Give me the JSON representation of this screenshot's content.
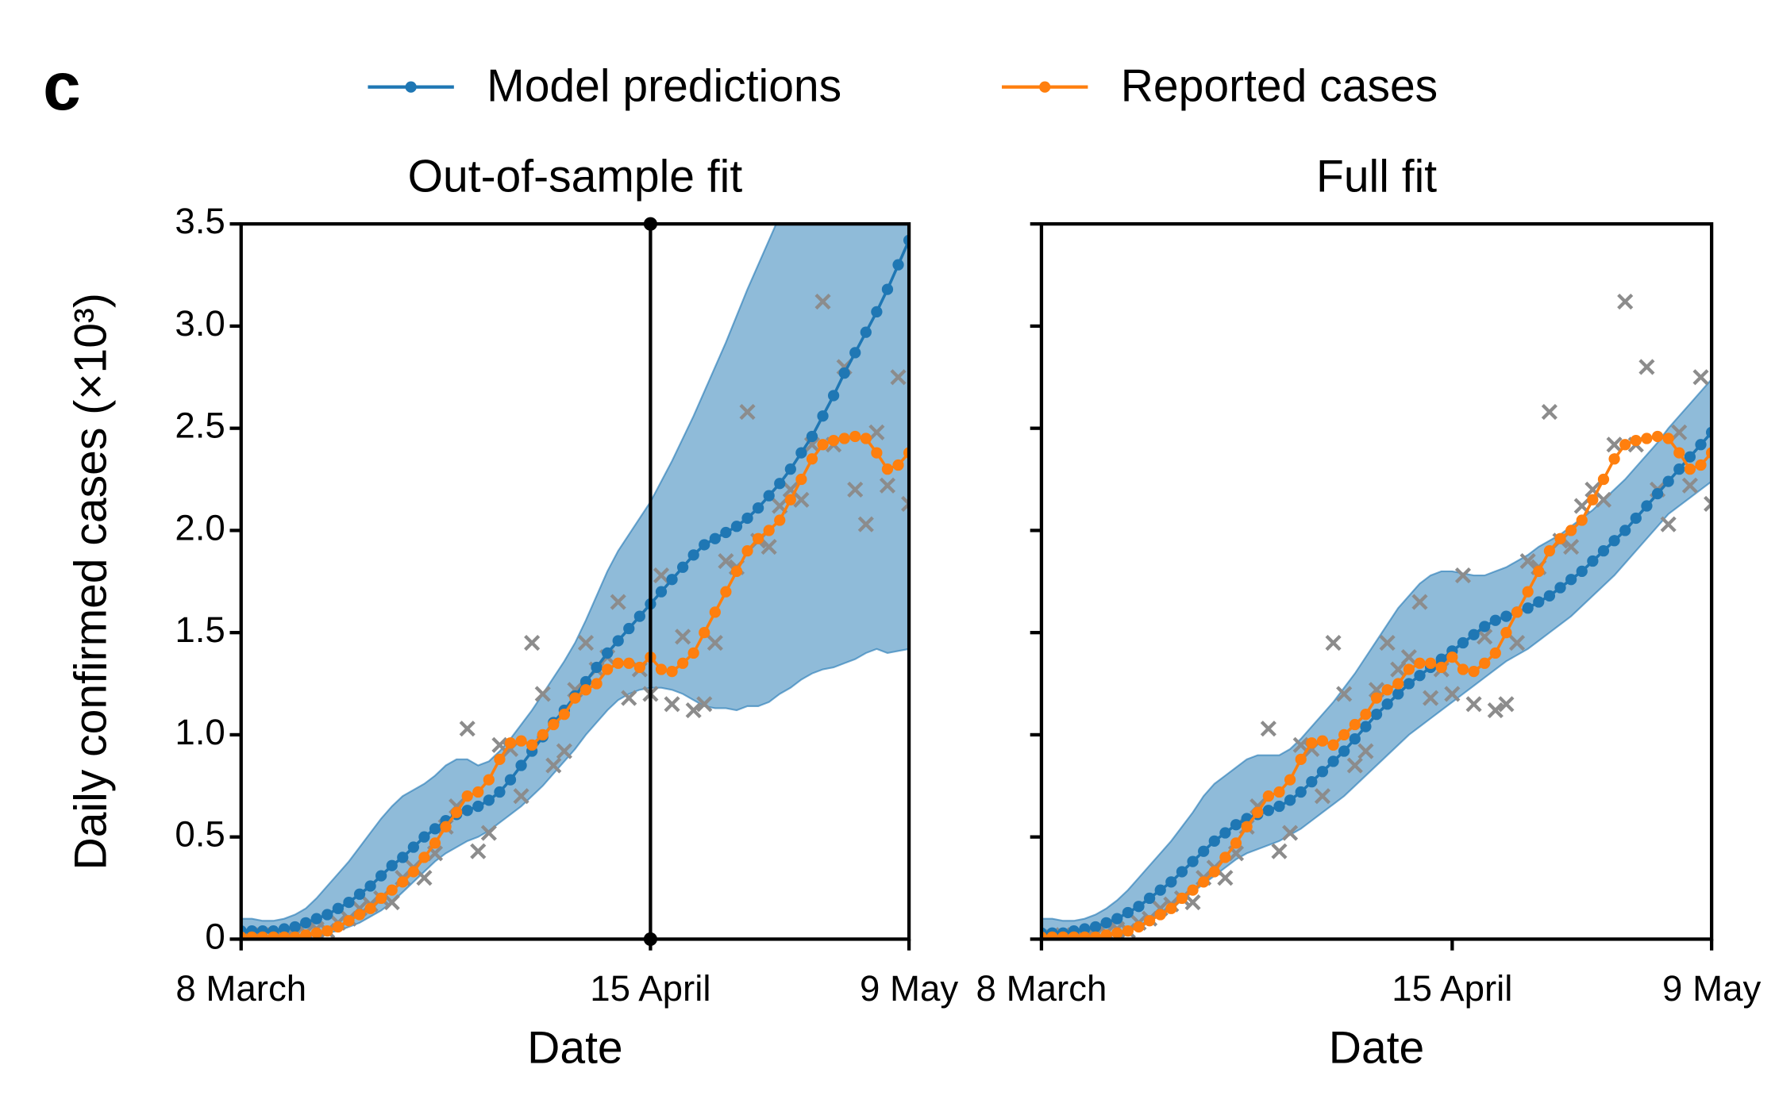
{
  "label": "c",
  "chart_data": [
    {
      "type": "line",
      "title": "Out-of-sample fit",
      "xlabel": "Date",
      "ylabel": "Daily confirmed cases (×10³)",
      "legend": "top",
      "x": [
        0,
        1,
        2,
        3,
        4,
        5,
        6,
        7,
        8,
        9,
        10,
        11,
        12,
        13,
        14,
        15,
        16,
        17,
        18,
        19,
        20,
        21,
        22,
        23,
        24,
        25,
        26,
        27,
        28,
        29,
        30,
        31,
        32,
        33,
        34,
        35,
        36,
        37,
        38,
        39,
        40,
        41,
        42,
        43,
        44,
        45,
        46,
        47,
        48,
        49,
        50,
        51,
        52,
        53,
        54,
        55,
        56,
        57,
        58,
        59,
        60,
        61,
        62
      ],
      "xlim": [
        0,
        62
      ],
      "xticks": [
        {
          "value": 0,
          "label": "8 March"
        },
        {
          "value": 38,
          "label": "15 April"
        },
        {
          "value": 62,
          "label": "9 May"
        }
      ],
      "ylim": [
        0,
        3.5
      ],
      "yticks": [
        0,
        0.5,
        {
          "value": 1,
          "label": "1.0"
        },
        1.5,
        {
          "value": 2,
          "label": "2.0"
        },
        2.5,
        {
          "value": 3,
          "label": "3.0"
        },
        3.5
      ],
      "vline": 38,
      "band": {
        "color": "#1f77b4",
        "upper": [
          0.1,
          0.1,
          0.09,
          0.09,
          0.1,
          0.12,
          0.15,
          0.2,
          0.26,
          0.32,
          0.38,
          0.45,
          0.52,
          0.59,
          0.65,
          0.7,
          0.73,
          0.76,
          0.8,
          0.85,
          0.88,
          0.88,
          0.85,
          0.87,
          0.92,
          0.98,
          1.05,
          1.12,
          1.2,
          1.28,
          1.36,
          1.45,
          1.56,
          1.68,
          1.8,
          1.9,
          1.98,
          2.06,
          2.14,
          2.24,
          2.34,
          2.45,
          2.56,
          2.68,
          2.8,
          2.92,
          3.05,
          3.18,
          3.3,
          3.42,
          3.54,
          3.64,
          3.74,
          3.84,
          3.94,
          4.04,
          4.14,
          4.24,
          4.34,
          4.44,
          4.54,
          4.64,
          4.74
        ],
        "lower": [
          0,
          0,
          0,
          0,
          0,
          0,
          0.01,
          0.02,
          0.03,
          0.04,
          0.06,
          0.08,
          0.11,
          0.14,
          0.18,
          0.23,
          0.28,
          0.33,
          0.38,
          0.42,
          0.45,
          0.48,
          0.5,
          0.53,
          0.57,
          0.61,
          0.65,
          0.7,
          0.75,
          0.81,
          0.87,
          0.93,
          1.0,
          1.06,
          1.12,
          1.17,
          1.2,
          1.22,
          1.23,
          1.23,
          1.22,
          1.2,
          1.17,
          1.14,
          1.13,
          1.13,
          1.12,
          1.14,
          1.14,
          1.16,
          1.2,
          1.23,
          1.27,
          1.3,
          1.32,
          1.33,
          1.35,
          1.37,
          1.4,
          1.42,
          1.4,
          1.41,
          1.42
        ]
      },
      "scatter": {
        "color": "#8c8c8c",
        "marker": "x",
        "values": [
          0.01,
          0,
          0.02,
          0.01,
          0,
          0.02,
          0.03,
          0.05,
          0.04,
          0.08,
          0.1,
          0.15,
          0.17,
          0.2,
          0.18,
          0.3,
          0.35,
          0.3,
          0.42,
          0.55,
          0.65,
          1.03,
          0.43,
          0.52,
          0.95,
          0.93,
          0.7,
          1.45,
          1.2,
          0.85,
          0.92,
          1.22,
          1.45,
          1.32,
          1.38,
          1.65,
          1.18,
          1.32,
          1.2,
          1.78,
          1.15,
          1.48,
          1.12,
          1.15,
          1.45,
          1.85,
          1.82,
          2.58,
          1.95,
          1.92,
          2.12,
          2.2,
          2.15,
          2.42,
          3.12,
          2.42,
          2.8,
          2.2,
          2.03,
          2.48,
          2.22,
          2.75,
          2.13
        ]
      },
      "series": [
        {
          "name": "Model predictions",
          "color": "#1f77b4",
          "values": [
            0.04,
            0.04,
            0.04,
            0.04,
            0.05,
            0.06,
            0.08,
            0.1,
            0.12,
            0.15,
            0.18,
            0.22,
            0.26,
            0.31,
            0.36,
            0.4,
            0.45,
            0.5,
            0.54,
            0.58,
            0.61,
            0.63,
            0.65,
            0.68,
            0.72,
            0.78,
            0.85,
            0.92,
            0.99,
            1.06,
            1.12,
            1.19,
            1.26,
            1.33,
            1.4,
            1.46,
            1.52,
            1.58,
            1.64,
            1.7,
            1.76,
            1.82,
            1.88,
            1.93,
            1.96,
            1.99,
            2.02,
            2.06,
            2.11,
            2.17,
            2.23,
            2.3,
            2.38,
            2.46,
            2.56,
            2.66,
            2.77,
            2.87,
            2.97,
            3.07,
            3.18,
            3.3,
            3.42
          ]
        },
        {
          "name": "Reported cases",
          "color": "#ff7f0e",
          "values": [
            0.01,
            0.01,
            0.01,
            0.01,
            0.01,
            0.01,
            0.02,
            0.03,
            0.04,
            0.06,
            0.09,
            0.12,
            0.15,
            0.2,
            0.24,
            0.28,
            0.33,
            0.4,
            0.47,
            0.55,
            0.62,
            0.7,
            0.72,
            0.78,
            0.88,
            0.96,
            0.97,
            0.95,
            1.0,
            1.05,
            1.1,
            1.18,
            1.22,
            1.25,
            1.32,
            1.35,
            1.35,
            1.33,
            1.38,
            1.32,
            1.31,
            1.35,
            1.4,
            1.5,
            1.6,
            1.7,
            1.8,
            1.9,
            1.96,
            2.0,
            2.05,
            2.15,
            2.25,
            2.35,
            2.42,
            2.44,
            2.45,
            2.46,
            2.45,
            2.38,
            2.3,
            2.32,
            2.38
          ]
        }
      ]
    },
    {
      "type": "line",
      "title": "Full fit",
      "xlabel": "Date",
      "show_ytick_labels": false,
      "x": [
        0,
        1,
        2,
        3,
        4,
        5,
        6,
        7,
        8,
        9,
        10,
        11,
        12,
        13,
        14,
        15,
        16,
        17,
        18,
        19,
        20,
        21,
        22,
        23,
        24,
        25,
        26,
        27,
        28,
        29,
        30,
        31,
        32,
        33,
        34,
        35,
        36,
        37,
        38,
        39,
        40,
        41,
        42,
        43,
        44,
        45,
        46,
        47,
        48,
        49,
        50,
        51,
        52,
        53,
        54,
        55,
        56,
        57,
        58,
        59,
        60,
        61,
        62
      ],
      "xlim": [
        0,
        62
      ],
      "xticks": [
        {
          "value": 0,
          "label": "8 March"
        },
        {
          "value": 38,
          "label": "15 April"
        },
        {
          "value": 62,
          "label": "9 May"
        }
      ],
      "ylim": [
        0,
        3.5
      ],
      "yticks": [
        0,
        0.5,
        1,
        1.5,
        2,
        2.5,
        3,
        3.5
      ],
      "band": {
        "color": "#1f77b4",
        "upper": [
          0.1,
          0.1,
          0.09,
          0.09,
          0.1,
          0.12,
          0.15,
          0.19,
          0.24,
          0.3,
          0.36,
          0.42,
          0.48,
          0.55,
          0.62,
          0.7,
          0.76,
          0.8,
          0.84,
          0.88,
          0.9,
          0.9,
          0.9,
          0.93,
          0.98,
          1.04,
          1.1,
          1.16,
          1.23,
          1.3,
          1.38,
          1.46,
          1.54,
          1.62,
          1.68,
          1.74,
          1.78,
          1.8,
          1.8,
          1.79,
          1.78,
          1.78,
          1.8,
          1.82,
          1.85,
          1.88,
          1.92,
          1.95,
          1.98,
          2.02,
          2.06,
          2.1,
          2.15,
          2.2,
          2.25,
          2.31,
          2.37,
          2.43,
          2.5,
          2.56,
          2.62,
          2.68,
          2.74
        ],
        "lower": [
          0,
          0,
          0,
          0,
          0,
          0.01,
          0.02,
          0.03,
          0.05,
          0.07,
          0.09,
          0.12,
          0.15,
          0.19,
          0.23,
          0.27,
          0.31,
          0.35,
          0.39,
          0.42,
          0.44,
          0.46,
          0.48,
          0.51,
          0.54,
          0.58,
          0.62,
          0.66,
          0.7,
          0.75,
          0.8,
          0.85,
          0.9,
          0.95,
          1.0,
          1.04,
          1.08,
          1.12,
          1.16,
          1.2,
          1.24,
          1.28,
          1.32,
          1.36,
          1.39,
          1.42,
          1.46,
          1.5,
          1.54,
          1.58,
          1.63,
          1.68,
          1.73,
          1.78,
          1.84,
          1.9,
          1.96,
          2.02,
          2.08,
          2.12,
          2.16,
          2.2,
          2.24
        ]
      },
      "scatter": {
        "color": "#8c8c8c",
        "marker": "x",
        "values": [
          0.01,
          0,
          0.02,
          0.01,
          0,
          0.02,
          0.03,
          0.05,
          0.04,
          0.08,
          0.1,
          0.15,
          0.17,
          0.2,
          0.18,
          0.3,
          0.35,
          0.3,
          0.42,
          0.55,
          0.65,
          1.03,
          0.43,
          0.52,
          0.95,
          0.93,
          0.7,
          1.45,
          1.2,
          0.85,
          0.92,
          1.22,
          1.45,
          1.32,
          1.38,
          1.65,
          1.18,
          1.32,
          1.2,
          1.78,
          1.15,
          1.48,
          1.12,
          1.15,
          1.45,
          1.85,
          1.82,
          2.58,
          1.95,
          1.92,
          2.12,
          2.2,
          2.15,
          2.42,
          3.12,
          2.42,
          2.8,
          2.2,
          2.03,
          2.48,
          2.22,
          2.75,
          2.13
        ]
      },
      "series": [
        {
          "name": "Model predictions",
          "color": "#1f77b4",
          "values": [
            0.03,
            0.03,
            0.03,
            0.04,
            0.05,
            0.06,
            0.08,
            0.1,
            0.13,
            0.16,
            0.2,
            0.24,
            0.28,
            0.33,
            0.38,
            0.43,
            0.48,
            0.52,
            0.56,
            0.59,
            0.61,
            0.63,
            0.65,
            0.68,
            0.72,
            0.77,
            0.82,
            0.87,
            0.92,
            0.98,
            1.04,
            1.1,
            1.15,
            1.2,
            1.25,
            1.29,
            1.33,
            1.37,
            1.41,
            1.45,
            1.49,
            1.53,
            1.56,
            1.58,
            1.6,
            1.62,
            1.65,
            1.68,
            1.72,
            1.76,
            1.8,
            1.85,
            1.9,
            1.95,
            2.0,
            2.06,
            2.12,
            2.18,
            2.24,
            2.3,
            2.36,
            2.42,
            2.48
          ]
        },
        {
          "name": "Reported cases",
          "color": "#ff7f0e",
          "values": [
            0.01,
            0.01,
            0.01,
            0.01,
            0.01,
            0.01,
            0.02,
            0.03,
            0.04,
            0.06,
            0.09,
            0.12,
            0.15,
            0.2,
            0.24,
            0.28,
            0.33,
            0.4,
            0.47,
            0.55,
            0.62,
            0.7,
            0.72,
            0.78,
            0.88,
            0.96,
            0.97,
            0.95,
            1.0,
            1.05,
            1.1,
            1.18,
            1.22,
            1.25,
            1.32,
            1.35,
            1.35,
            1.33,
            1.38,
            1.32,
            1.31,
            1.35,
            1.4,
            1.5,
            1.6,
            1.7,
            1.8,
            1.9,
            1.96,
            2.0,
            2.05,
            2.15,
            2.25,
            2.35,
            2.42,
            2.44,
            2.45,
            2.46,
            2.45,
            2.38,
            2.3,
            2.32,
            2.38
          ]
        }
      ]
    }
  ]
}
